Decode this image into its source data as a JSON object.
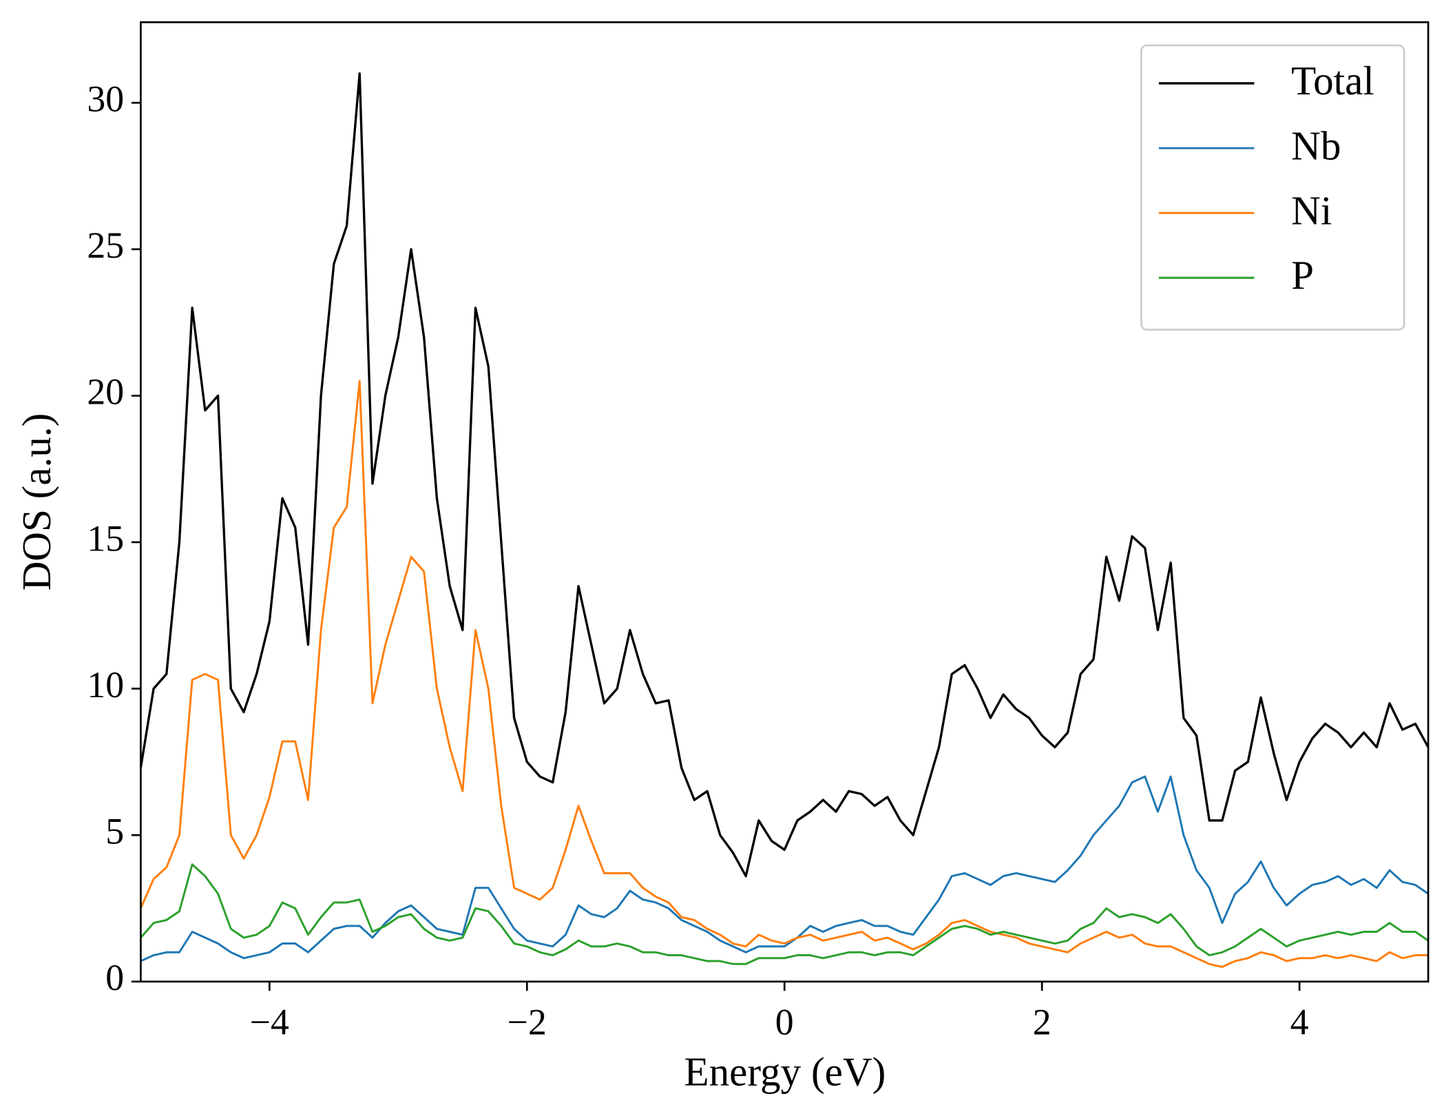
{
  "chart_data": {
    "type": "line",
    "xlabel": "Energy (eV)",
    "ylabel": "DOS (a.u.)",
    "xlim": [
      -5,
      5
    ],
    "ylim": [
      0,
      32.75
    ],
    "xticks": [
      {
        "value": -4,
        "label": "−4"
      },
      {
        "value": -2,
        "label": "−2"
      },
      0,
      2,
      4
    ],
    "yticks": [
      0,
      5,
      10,
      15,
      20,
      25,
      30
    ],
    "grid": false,
    "legend": "upper right",
    "x": [
      -5.0,
      -4.9,
      -4.8,
      -4.7,
      -4.6,
      -4.5,
      -4.4,
      -4.3,
      -4.2,
      -4.1,
      -4.0,
      -3.9,
      -3.8,
      -3.7,
      -3.6,
      -3.5,
      -3.4,
      -3.3,
      -3.2,
      -3.1,
      -3.0,
      -2.9,
      -2.8,
      -2.7,
      -2.6,
      -2.5,
      -2.4,
      -2.3,
      -2.2,
      -2.1,
      -2.0,
      -1.9,
      -1.8,
      -1.7,
      -1.6,
      -1.5,
      -1.4,
      -1.3,
      -1.2,
      -1.1,
      -1.0,
      -0.9,
      -0.8,
      -0.7,
      -0.6,
      -0.5,
      -0.4,
      -0.3,
      -0.2,
      -0.1,
      0.0,
      0.1,
      0.2,
      0.3,
      0.4,
      0.5,
      0.6,
      0.7,
      0.8,
      0.9,
      1.0,
      1.1,
      1.2,
      1.3,
      1.4,
      1.5,
      1.6,
      1.7,
      1.8,
      1.9,
      2.0,
      2.1,
      2.2,
      2.3,
      2.4,
      2.5,
      2.6,
      2.7,
      2.8,
      2.9,
      3.0,
      3.1,
      3.2,
      3.3,
      3.4,
      3.5,
      3.6,
      3.7,
      3.8,
      3.9,
      4.0,
      4.1,
      4.2,
      4.3,
      4.4,
      4.5,
      4.6,
      4.7,
      4.8,
      4.9,
      5.0
    ],
    "series": [
      {
        "name": "Total",
        "color": "#000000",
        "values": [
          7.3,
          10.0,
          10.5,
          15,
          23.0,
          19.5,
          20,
          10,
          9.2,
          10.5,
          12.3,
          16.5,
          15.5,
          11.5,
          20,
          24.5,
          25.8,
          31,
          17,
          20,
          22,
          25,
          22,
          16.5,
          13.5,
          12,
          23,
          21,
          15,
          9,
          7.5,
          7.0,
          6.8,
          9.2,
          13.5,
          11.5,
          9.5,
          10,
          12,
          10.5,
          9.5,
          9.6,
          7.3,
          6.2,
          6.5,
          5.0,
          4.4,
          3.6,
          5.5,
          4.8,
          4.5,
          5.5,
          5.8,
          6.2,
          5.8,
          6.5,
          6.4,
          6.0,
          6.3,
          5.5,
          5.0,
          6.5,
          8.0,
          10.5,
          10.8,
          10,
          9,
          9.8,
          9.3,
          9.0,
          8.4,
          8.0,
          8.5,
          10.5,
          11,
          14.5,
          13,
          15.2,
          14.8,
          12,
          14.3,
          9,
          8.4,
          5.5,
          5.5,
          7.2,
          7.5,
          9.7,
          7.8,
          6.2,
          7.5,
          8.3,
          8.8,
          8.5,
          8.0,
          8.5,
          8.0,
          9.5,
          8.6,
          8.8,
          8.0
        ]
      },
      {
        "name": "Nb",
        "color": "#1f77b4",
        "values": [
          0.7,
          0.9,
          1.0,
          1.0,
          1.7,
          1.5,
          1.3,
          1.0,
          0.8,
          0.9,
          1.0,
          1.3,
          1.3,
          1.0,
          1.4,
          1.8,
          1.9,
          1.9,
          1.5,
          2.0,
          2.4,
          2.6,
          2.2,
          1.8,
          1.7,
          1.6,
          3.2,
          3.2,
          2.5,
          1.8,
          1.4,
          1.3,
          1.2,
          1.6,
          2.6,
          2.3,
          2.2,
          2.5,
          3.1,
          2.8,
          2.7,
          2.5,
          2.1,
          1.9,
          1.7,
          1.4,
          1.2,
          1.0,
          1.2,
          1.2,
          1.2,
          1.5,
          1.9,
          1.7,
          1.9,
          2.0,
          2.1,
          1.9,
          1.9,
          1.7,
          1.6,
          2.2,
          2.8,
          3.6,
          3.7,
          3.5,
          3.3,
          3.6,
          3.7,
          3.6,
          3.5,
          3.4,
          3.8,
          4.3,
          5,
          5.5,
          6,
          6.8,
          7,
          5.8,
          7,
          5,
          3.8,
          3.2,
          2.0,
          3.0,
          3.4,
          4.1,
          3.2,
          2.6,
          3.0,
          3.3,
          3.4,
          3.6,
          3.3,
          3.5,
          3.2,
          3.8,
          3.4,
          3.3,
          3.0
        ]
      },
      {
        "name": "Ni",
        "color": "#ff7f0e",
        "values": [
          2.5,
          3.5,
          3.9,
          5,
          10.3,
          10.5,
          10.3,
          5,
          4.2,
          5,
          6.3,
          8.2,
          8.2,
          6.2,
          12,
          15.5,
          16.2,
          20.5,
          9.5,
          11.5,
          13,
          14.5,
          14,
          10,
          8,
          6.5,
          12,
          10,
          6,
          3.2,
          3.0,
          2.8,
          3.2,
          4.5,
          6,
          4.8,
          3.7,
          3.7,
          3.7,
          3.2,
          2.9,
          2.7,
          2.2,
          2.1,
          1.8,
          1.6,
          1.3,
          1.2,
          1.6,
          1.4,
          1.3,
          1.5,
          1.6,
          1.4,
          1.5,
          1.6,
          1.7,
          1.4,
          1.5,
          1.3,
          1.1,
          1.3,
          1.6,
          2.0,
          2.1,
          1.9,
          1.7,
          1.6,
          1.5,
          1.3,
          1.2,
          1.1,
          1.0,
          1.3,
          1.5,
          1.7,
          1.5,
          1.6,
          1.3,
          1.2,
          1.2,
          1.0,
          0.8,
          0.6,
          0.5,
          0.7,
          0.8,
          1.0,
          0.9,
          0.7,
          0.8,
          0.8,
          0.9,
          0.8,
          0.9,
          0.8,
          0.7,
          1.0,
          0.8,
          0.9,
          0.9
        ]
      },
      {
        "name": "P",
        "color": "#2ca02c",
        "values": [
          1.5,
          2.0,
          2.1,
          2.4,
          4.0,
          3.6,
          3.0,
          1.8,
          1.5,
          1.6,
          1.9,
          2.7,
          2.5,
          1.6,
          2.2,
          2.7,
          2.7,
          2.8,
          1.7,
          1.9,
          2.2,
          2.3,
          1.8,
          1.5,
          1.4,
          1.5,
          2.5,
          2.4,
          1.9,
          1.3,
          1.2,
          1.0,
          0.9,
          1.1,
          1.4,
          1.2,
          1.2,
          1.3,
          1.2,
          1.0,
          1.0,
          0.9,
          0.9,
          0.8,
          0.7,
          0.7,
          0.6,
          0.6,
          0.8,
          0.8,
          0.8,
          0.9,
          0.9,
          0.8,
          0.9,
          1.0,
          1.0,
          0.9,
          1.0,
          1.0,
          0.9,
          1.2,
          1.5,
          1.8,
          1.9,
          1.8,
          1.6,
          1.7,
          1.6,
          1.5,
          1.4,
          1.3,
          1.4,
          1.8,
          2.0,
          2.5,
          2.2,
          2.3,
          2.2,
          2.0,
          2.3,
          1.8,
          1.2,
          0.9,
          1.0,
          1.2,
          1.5,
          1.8,
          1.5,
          1.2,
          1.4,
          1.5,
          1.6,
          1.7,
          1.6,
          1.7,
          1.7,
          2.0,
          1.7,
          1.7,
          1.4
        ]
      }
    ]
  }
}
